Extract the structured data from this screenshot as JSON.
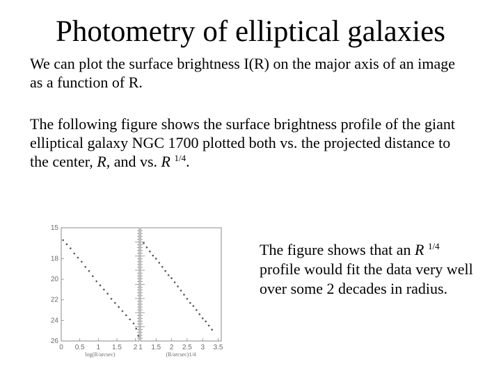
{
  "title": "Photometry of elliptical galaxies",
  "para1": "We can plot the surface brightness I(R) on the major axis of an image as a function of R.",
  "para2": {
    "text_before": "The following figure shows the surface brightness profile of the giant elliptical galaxy NGC 1700 plotted both vs. the projected distance to the center, ",
    "r_italic": "R",
    "text_middle": ", and vs. ",
    "r_italic_2": "R",
    "exponent": "1/4",
    "text_end": "."
  },
  "conclusion": {
    "text_before": "The figure shows that an ",
    "r_italic": "R",
    "exponent": "1/4",
    "text_after": " profile would fit the data very well over some 2 decades in radius."
  },
  "chart_data": [
    {
      "type": "scatter",
      "title": "",
      "xlabel": "log(R/arcsec)",
      "ylabel": "",
      "xlim": [
        0,
        2.1
      ],
      "ylim": [
        26,
        15
      ],
      "x_ticks": [
        "0",
        "0.5",
        "1",
        "1.5",
        "2"
      ],
      "y_ticks": [
        "15",
        "18",
        "20",
        "22",
        "24",
        "26"
      ],
      "series": [
        {
          "x": [
            0.05,
            0.15,
            0.25,
            0.35,
            0.45,
            0.55,
            0.65,
            0.75,
            0.85,
            0.95,
            1.05,
            1.15,
            1.25,
            1.35,
            1.45,
            1.55,
            1.65,
            1.75,
            1.85,
            1.95,
            2.02,
            2.08
          ],
          "y": [
            16.2,
            16.6,
            17.0,
            17.5,
            17.9,
            18.3,
            18.8,
            19.2,
            19.7,
            20.2,
            20.6,
            21.0,
            21.4,
            21.9,
            22.3,
            22.7,
            23.1,
            23.5,
            23.9,
            24.3,
            24.8,
            25.5
          ]
        }
      ]
    },
    {
      "type": "scatter",
      "title": "",
      "xlabel": "(R/arcsec)1/4",
      "ylabel": "",
      "xlim": [
        1,
        3.6
      ],
      "ylim": [
        26,
        15
      ],
      "x_ticks": [
        "1",
        "1.5",
        "2",
        "2.5",
        "3",
        "3.5"
      ],
      "series": [
        {
          "x": [
            1.1,
            1.2,
            1.3,
            1.4,
            1.5,
            1.6,
            1.7,
            1.8,
            1.9,
            2.0,
            2.1,
            2.2,
            2.3,
            2.4,
            2.5,
            2.6,
            2.7,
            2.8,
            2.9,
            3.0,
            3.1,
            3.2,
            3.3
          ],
          "y": [
            16.5,
            16.9,
            17.3,
            17.7,
            18.0,
            18.4,
            18.8,
            19.2,
            19.6,
            19.9,
            20.3,
            20.7,
            21.1,
            21.5,
            21.9,
            22.3,
            22.6,
            23.0,
            23.4,
            23.8,
            24.1,
            24.5,
            24.9
          ]
        }
      ]
    }
  ]
}
